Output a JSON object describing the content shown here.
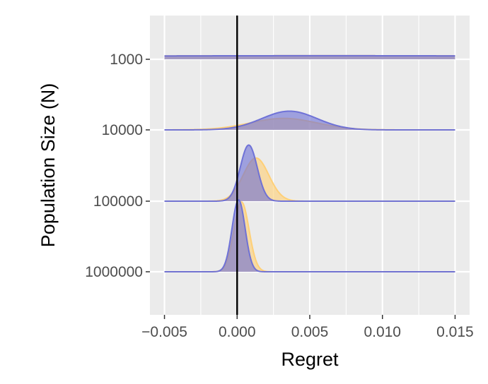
{
  "chart_data": {
    "type": "ridgeline",
    "xlabel": "Regret",
    "ylabel": "Population Size (N)",
    "xlim": [
      -0.006,
      0.016
    ],
    "x_ticks": [
      -0.005,
      0.0,
      0.005,
      0.01,
      0.015
    ],
    "x_tick_labels": [
      "−0.005",
      "0.000",
      "0.005",
      "0.010",
      "0.015"
    ],
    "categories": [
      "1000",
      "10000",
      "100000",
      "1000000"
    ],
    "reference_line_x": 0.0,
    "grid": true,
    "background": "#ebebeb",
    "series": [
      {
        "color": "#ffcf73",
        "opacity": 0.6,
        "distributions": [
          {
            "category": "1000",
            "mean": 0.006,
            "sd": 0.03,
            "peak": 0.05
          },
          {
            "category": "10000",
            "mean": 0.0032,
            "sd": 0.0023,
            "peak": 0.16
          },
          {
            "category": "100000",
            "mean": 0.0013,
            "sd": 0.00088,
            "peak": 0.6
          },
          {
            "category": "1000000",
            "mean": 0.0003,
            "sd": 0.00052,
            "peak": 0.97
          }
        ]
      },
      {
        "color": "#6a6ed6",
        "opacity": 0.6,
        "distributions": [
          {
            "category": "1000",
            "mean": 0.006,
            "sd": 0.03,
            "peak": 0.05
          },
          {
            "category": "10000",
            "mean": 0.0036,
            "sd": 0.0019,
            "peak": 0.26
          },
          {
            "category": "100000",
            "mean": 0.0008,
            "sd": 0.00058,
            "peak": 0.78
          },
          {
            "category": "1000000",
            "mean": 0.0001,
            "sd": 0.00045,
            "peak": 1.0
          }
        ]
      }
    ]
  }
}
